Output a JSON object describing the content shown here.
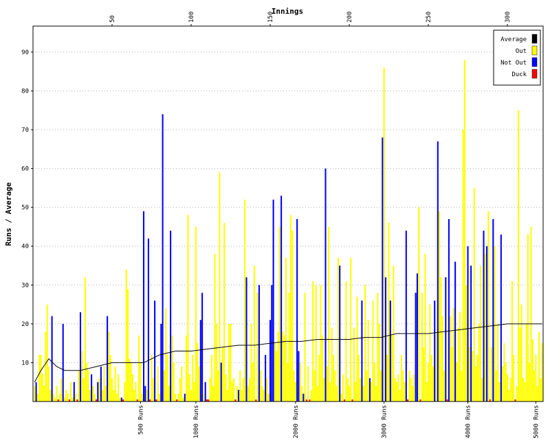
{
  "chart_data": {
    "type": "bar",
    "x_label": "Innings",
    "y_label": "Runs / Average",
    "xlim": [
      0,
      322.6
    ],
    "xticks": [
      50,
      100,
      150,
      200,
      250,
      300
    ],
    "x2ticks": [
      {
        "value": 68,
        "label": "500 Runs"
      },
      {
        "value": 103,
        "label": "1000 Runs"
      },
      {
        "value": 166,
        "label": "2000 Runs"
      },
      {
        "value": 222,
        "label": "3000 Runs"
      },
      {
        "value": 275,
        "label": "4000 Runs"
      },
      {
        "value": 318,
        "label": "5000 Runs"
      }
    ],
    "ylim": [
      0,
      96.7
    ],
    "yticks": [
      10,
      20,
      30,
      40,
      50,
      60,
      70,
      80,
      90
    ],
    "grid": true,
    "legend": "upper right",
    "series": [
      {
        "name": "Average",
        "color": "#000000",
        "type": "line",
        "x": [
          1,
          5,
          10,
          15,
          20,
          30,
          40,
          50,
          60,
          70,
          80,
          90,
          100,
          110,
          120,
          130,
          140,
          150,
          160,
          170,
          180,
          190,
          200,
          210,
          220,
          230,
          240,
          250,
          260,
          270,
          280,
          290,
          300,
          310,
          322
        ],
        "values": [
          5,
          8,
          11,
          9,
          8,
          8,
          9,
          10,
          10,
          10,
          12,
          13,
          13,
          13.5,
          14,
          14.5,
          14.5,
          15,
          15.5,
          15.5,
          16,
          16,
          16,
          16.5,
          16.5,
          17.5,
          17.5,
          17.5,
          18,
          18.5,
          19,
          19.5,
          20,
          20,
          20
        ]
      },
      {
        "name": "Out",
        "color": "#ffff00",
        "type": "bar",
        "x": [
          1,
          3,
          4,
          5,
          6,
          7,
          8,
          9,
          10,
          11,
          13,
          14,
          15,
          17,
          18,
          20,
          21,
          22,
          24,
          25,
          27,
          29,
          31,
          32,
          33,
          34,
          35,
          36,
          38,
          39,
          42,
          44,
          45,
          46,
          48,
          49,
          50,
          51,
          52,
          53,
          54,
          55,
          58,
          59,
          60,
          61,
          62,
          63,
          64,
          65,
          67,
          68,
          69,
          72,
          75,
          76,
          79,
          80,
          83,
          84,
          85,
          86,
          88,
          89,
          90,
          92,
          93,
          94,
          95,
          97,
          98,
          99,
          100,
          101,
          102,
          103,
          104,
          105,
          108,
          112,
          113,
          114,
          115,
          116,
          117,
          118,
          120,
          121,
          122,
          123,
          124,
          125,
          126,
          127,
          129,
          131,
          132,
          133,
          134,
          136,
          137,
          138,
          139,
          140,
          142,
          144,
          145,
          146,
          148,
          149,
          153,
          154,
          155,
          156,
          158,
          159,
          160,
          161,
          162,
          163,
          164,
          165,
          166,
          169,
          170,
          172,
          174,
          176,
          177,
          178,
          179,
          180,
          181,
          182,
          183,
          184,
          186,
          187,
          188,
          189,
          190,
          191,
          192,
          193,
          195,
          196,
          198,
          199,
          200,
          201,
          203,
          204,
          205,
          206,
          207,
          209,
          210,
          211,
          212,
          214,
          215,
          216,
          217,
          218,
          219,
          220,
          222,
          224,
          225,
          227,
          228,
          229,
          230,
          231,
          232,
          233,
          234,
          235,
          238,
          239,
          240,
          241,
          244,
          246,
          247,
          248,
          249,
          250,
          251,
          252,
          253,
          255,
          257,
          258,
          259,
          260,
          264,
          265,
          266,
          268,
          269,
          270,
          271,
          272,
          273,
          274,
          276,
          278,
          279,
          280,
          281,
          282,
          283,
          284,
          286,
          288,
          290,
          292,
          293,
          294,
          295,
          297,
          298,
          299,
          300,
          301,
          302,
          303,
          304,
          306,
          307,
          308,
          309,
          310,
          311,
          312,
          313,
          314,
          315,
          316,
          317,
          318,
          319,
          320,
          321,
          322
        ],
        "values": [
          4,
          2,
          12,
          12,
          7,
          4,
          18,
          25,
          9,
          3,
          2,
          1,
          4,
          2,
          6,
          1,
          3,
          2,
          5,
          1,
          2,
          8,
          13,
          6,
          32,
          10,
          8,
          3,
          4,
          2,
          6,
          3,
          9,
          4,
          18,
          12,
          6,
          3,
          9,
          2,
          7,
          1,
          5,
          34,
          29,
          11,
          10,
          7,
          3,
          5,
          17,
          10,
          2,
          3,
          12,
          6,
          9,
          2,
          8,
          24,
          12,
          4,
          17,
          10,
          2,
          2,
          6,
          9,
          1,
          17,
          48,
          7,
          3,
          12,
          5,
          45,
          15,
          9,
          2,
          6,
          12,
          4,
          38,
          20,
          8,
          59,
          14,
          46,
          7,
          3,
          20,
          20,
          5,
          6,
          4,
          8,
          3,
          6,
          52,
          4,
          6,
          20,
          10,
          35,
          28,
          8,
          4,
          3,
          6,
          2,
          15,
          13,
          18,
          45,
          18,
          17,
          37,
          10,
          28,
          48,
          44,
          8,
          5,
          10,
          4,
          28,
          9,
          3,
          31,
          8,
          30,
          4,
          12,
          30,
          17,
          6,
          9,
          45,
          5,
          19,
          12,
          8,
          4,
          37,
          2,
          7,
          31,
          6,
          4,
          37,
          19,
          5,
          27,
          12,
          6,
          4,
          30,
          8,
          21,
          5,
          26,
          10,
          4,
          28,
          20,
          8,
          86,
          12,
          46,
          17,
          35,
          6,
          5,
          7,
          3,
          12,
          8,
          5,
          8,
          6,
          4,
          7,
          50,
          28,
          14,
          38,
          5,
          10,
          25,
          12,
          9,
          18,
          49,
          32,
          22,
          8,
          22,
          14,
          24,
          10,
          19,
          23,
          8,
          70,
          88,
          30,
          14,
          13,
          55,
          9,
          12,
          20,
          35,
          6,
          38,
          49,
          14,
          40,
          8,
          20,
          5,
          9,
          15,
          10,
          7,
          3,
          6,
          31,
          12,
          4,
          75,
          19,
          25,
          6,
          5,
          20,
          43,
          10,
          45,
          16,
          8,
          12,
          4,
          18,
          6,
          15
        ]
      },
      {
        "name": "Not Out",
        "color": "#0000ff",
        "type": "bar",
        "x": [
          2,
          12,
          19,
          26,
          30,
          37,
          41,
          43,
          47,
          56,
          70,
          71,
          73,
          77,
          81,
          82,
          87,
          96,
          106,
          107,
          109,
          119,
          130,
          135,
          143,
          147,
          150,
          151,
          152,
          157,
          167,
          168,
          171,
          185,
          194,
          208,
          213,
          221,
          223,
          226,
          236,
          242,
          243,
          254,
          256,
          261,
          263,
          267,
          275,
          277,
          285,
          287,
          291,
          296
        ],
        "values": [
          5,
          22,
          20,
          5,
          23,
          7,
          5,
          9,
          22,
          1,
          49,
          4,
          42,
          26,
          20,
          74,
          44,
          2,
          21,
          28,
          5,
          10,
          3,
          32,
          30,
          12,
          21,
          30,
          52,
          53,
          47,
          13,
          2,
          60,
          35,
          26,
          6,
          68,
          32,
          26,
          44,
          28,
          33,
          26,
          67,
          32,
          47,
          36,
          40,
          35,
          44,
          40,
          47,
          43
        ]
      },
      {
        "name": "Duck",
        "color": "#ff0000",
        "type": "bar",
        "x": [
          16,
          23,
          28,
          40,
          57,
          66,
          74,
          78,
          91,
          110,
          111,
          128,
          141,
          173,
          175,
          197,
          202,
          237,
          245,
          262,
          289,
          305
        ],
        "values": [
          0,
          0,
          0,
          0,
          0,
          0,
          0,
          0,
          0,
          0,
          0,
          0,
          0,
          0,
          0,
          0,
          0,
          0,
          0,
          0,
          0,
          0
        ]
      }
    ]
  }
}
